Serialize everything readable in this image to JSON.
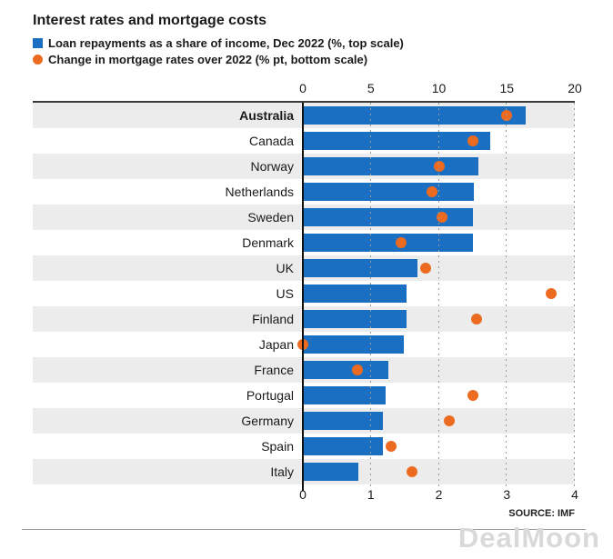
{
  "title": "Interest rates and mortgage costs",
  "legend": [
    {
      "marker": "blue-square",
      "label": "Loan repayments as a share of income, Dec 2022 (%, top scale)"
    },
    {
      "marker": "orange-circle",
      "label": "Change in mortgage rates over 2022 (% pt, bottom scale)"
    }
  ],
  "source": "SOURCE: IMF",
  "watermark": "DealMoon",
  "colors": {
    "bar_blue": "#1b6fc2",
    "dot_orange": "#ed6b21",
    "row_stripe": "#ececec",
    "gridline": "#9a9a9a",
    "axis": "#111111"
  },
  "chart_data": {
    "type": "bar",
    "orientation": "horizontal",
    "title": "Interest rates and mortgage costs",
    "categories": [
      "Australia",
      "Canada",
      "Norway",
      "Netherlands",
      "Sweden",
      "Denmark",
      "UK",
      "US",
      "Finland",
      "Japan",
      "France",
      "Portugal",
      "Germany",
      "Spain",
      "Italy"
    ],
    "series": [
      {
        "name": "Loan repayments as a share of income, Dec 2022 (%)",
        "type": "bar",
        "axis": "top",
        "axis_range": [
          0,
          20
        ],
        "values": [
          16.4,
          13.8,
          12.9,
          12.6,
          12.5,
          12.5,
          8.4,
          7.6,
          7.6,
          7.4,
          6.3,
          6.1,
          5.9,
          5.9,
          4.1
        ]
      },
      {
        "name": "Change in mortgage rates over 2022 (% pt)",
        "type": "scatter",
        "axis": "bottom",
        "axis_range": [
          0,
          4
        ],
        "values": [
          3.0,
          2.5,
          2.0,
          1.9,
          2.05,
          1.45,
          1.8,
          3.65,
          2.55,
          0.0,
          0.8,
          2.5,
          2.15,
          1.3,
          1.6
        ]
      }
    ],
    "top_axis_ticks": [
      "0",
      "5",
      "10",
      "15",
      "20"
    ],
    "bottom_axis_ticks": [
      "0",
      "1",
      "2",
      "3",
      "4"
    ],
    "highlighted_category": "Australia",
    "grid": "dotted-vertical",
    "legend_position": "top-left"
  }
}
